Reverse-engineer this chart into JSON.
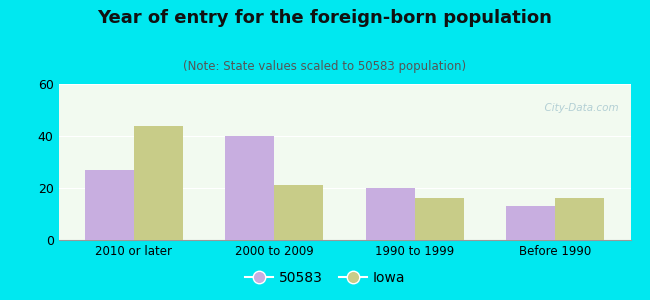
{
  "title": "Year of entry for the foreign-born population",
  "subtitle": "(Note: State values scaled to 50583 population)",
  "categories": [
    "2010 or later",
    "2000 to 2009",
    "1990 to 1999",
    "Before 1990"
  ],
  "series": [
    {
      "label": "50583",
      "values": [
        27,
        40,
        20,
        13
      ],
      "color": "#c8aee0"
    },
    {
      "label": "Iowa",
      "values": [
        44,
        21,
        16,
        16
      ],
      "color": "#c8cc88"
    }
  ],
  "ylim": [
    0,
    60
  ],
  "yticks": [
    0,
    20,
    40,
    60
  ],
  "bar_width": 0.35,
  "figure_bg": "#00e8f0",
  "plot_bg": "#f2faf0",
  "title_fontsize": 13,
  "subtitle_fontsize": 8.5,
  "watermark": "  City-Data.com",
  "watermark_color": "#a8c8d0"
}
